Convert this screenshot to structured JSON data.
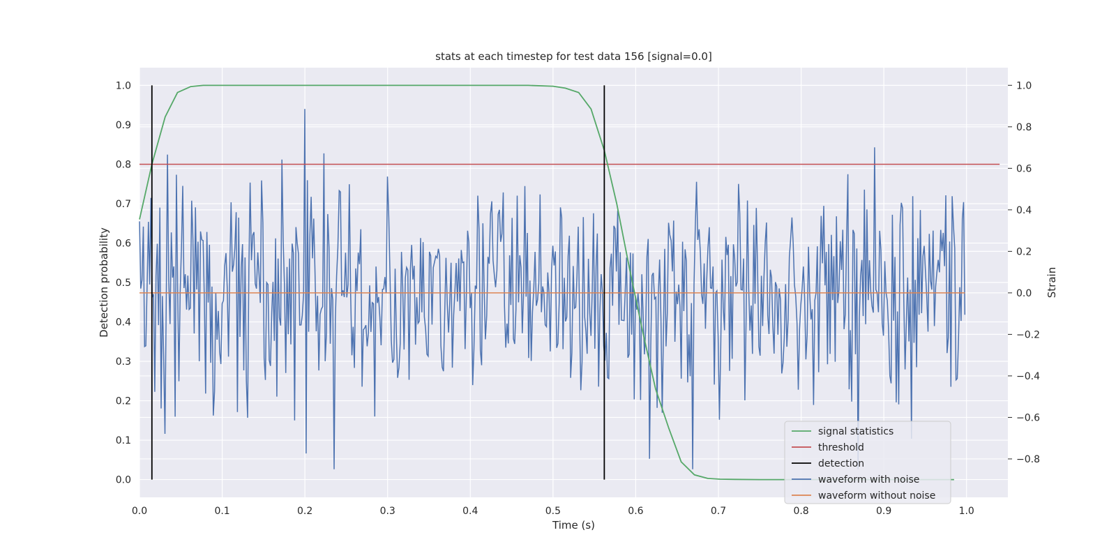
{
  "chart_data": {
    "type": "line",
    "title": "stats at each timestep for test data 156 [signal=0.0]",
    "xlabel": "Time (s)",
    "ylabel": "Detection probability",
    "y2label": "Strain",
    "xlim": [
      0.0,
      1.05
    ],
    "ylim": [
      -0.045,
      1.045
    ],
    "y2lim": [
      -0.985,
      1.085
    ],
    "xticks": [
      "0.0",
      "0.1",
      "0.2",
      "0.3",
      "0.4",
      "0.5",
      "0.6",
      "0.7",
      "0.8",
      "0.9",
      "1.0"
    ],
    "yticks": [
      "0.0",
      "0.1",
      "0.2",
      "0.3",
      "0.4",
      "0.5",
      "0.6",
      "0.7",
      "0.8",
      "0.9",
      "1.0"
    ],
    "y2ticks": [
      "−0.8",
      "−0.6",
      "−0.4",
      "−0.2",
      "0.0",
      "0.2",
      "0.4",
      "0.6",
      "0.8",
      "1.0"
    ],
    "grid": true,
    "legend_position": "lower-right",
    "series": [
      {
        "name": "signal statistics",
        "color": "#55a868",
        "axis": "left",
        "x": [
          0.0,
          0.015,
          0.031,
          0.046,
          0.062,
          0.077,
          0.1,
          0.2,
          0.3,
          0.4,
          0.47,
          0.5,
          0.515,
          0.531,
          0.546,
          0.562,
          0.577,
          0.593,
          0.609,
          0.624,
          0.64,
          0.655,
          0.671,
          0.687,
          0.702,
          0.72,
          0.75,
          0.8,
          0.9,
          0.985
        ],
        "y": [
          0.66,
          0.8,
          0.92,
          0.982,
          0.997,
          1.0,
          1.0,
          1.0,
          1.0,
          1.0,
          1.0,
          0.998,
          0.993,
          0.982,
          0.94,
          0.835,
          0.7,
          0.53,
          0.37,
          0.23,
          0.13,
          0.045,
          0.012,
          0.003,
          0.001,
          0.0005,
          0.0,
          0.0,
          0.0,
          0.0
        ]
      },
      {
        "name": "threshold",
        "color": "#c44e52",
        "axis": "left",
        "x": [
          0.0,
          1.04
        ],
        "y": [
          0.8,
          0.8
        ]
      },
      {
        "name": "detection",
        "color": "#000000",
        "axis": "left",
        "x": [
          0.015,
          0.562
        ],
        "y": [
          0.0,
          1.0
        ]
      },
      {
        "name": "waveform with noise",
        "color": "#4c72b0",
        "axis": "right",
        "x_range": [
          0.0,
          0.998
        ],
        "approximate_points": 650,
        "y_range": [
          -0.85,
          1.0
        ],
        "noise_sigma": 0.27
      },
      {
        "name": "waveform without noise",
        "color": "#dd8452",
        "axis": "right",
        "x": [
          0.0,
          0.998
        ],
        "y": [
          0.0,
          0.0
        ]
      }
    ]
  }
}
